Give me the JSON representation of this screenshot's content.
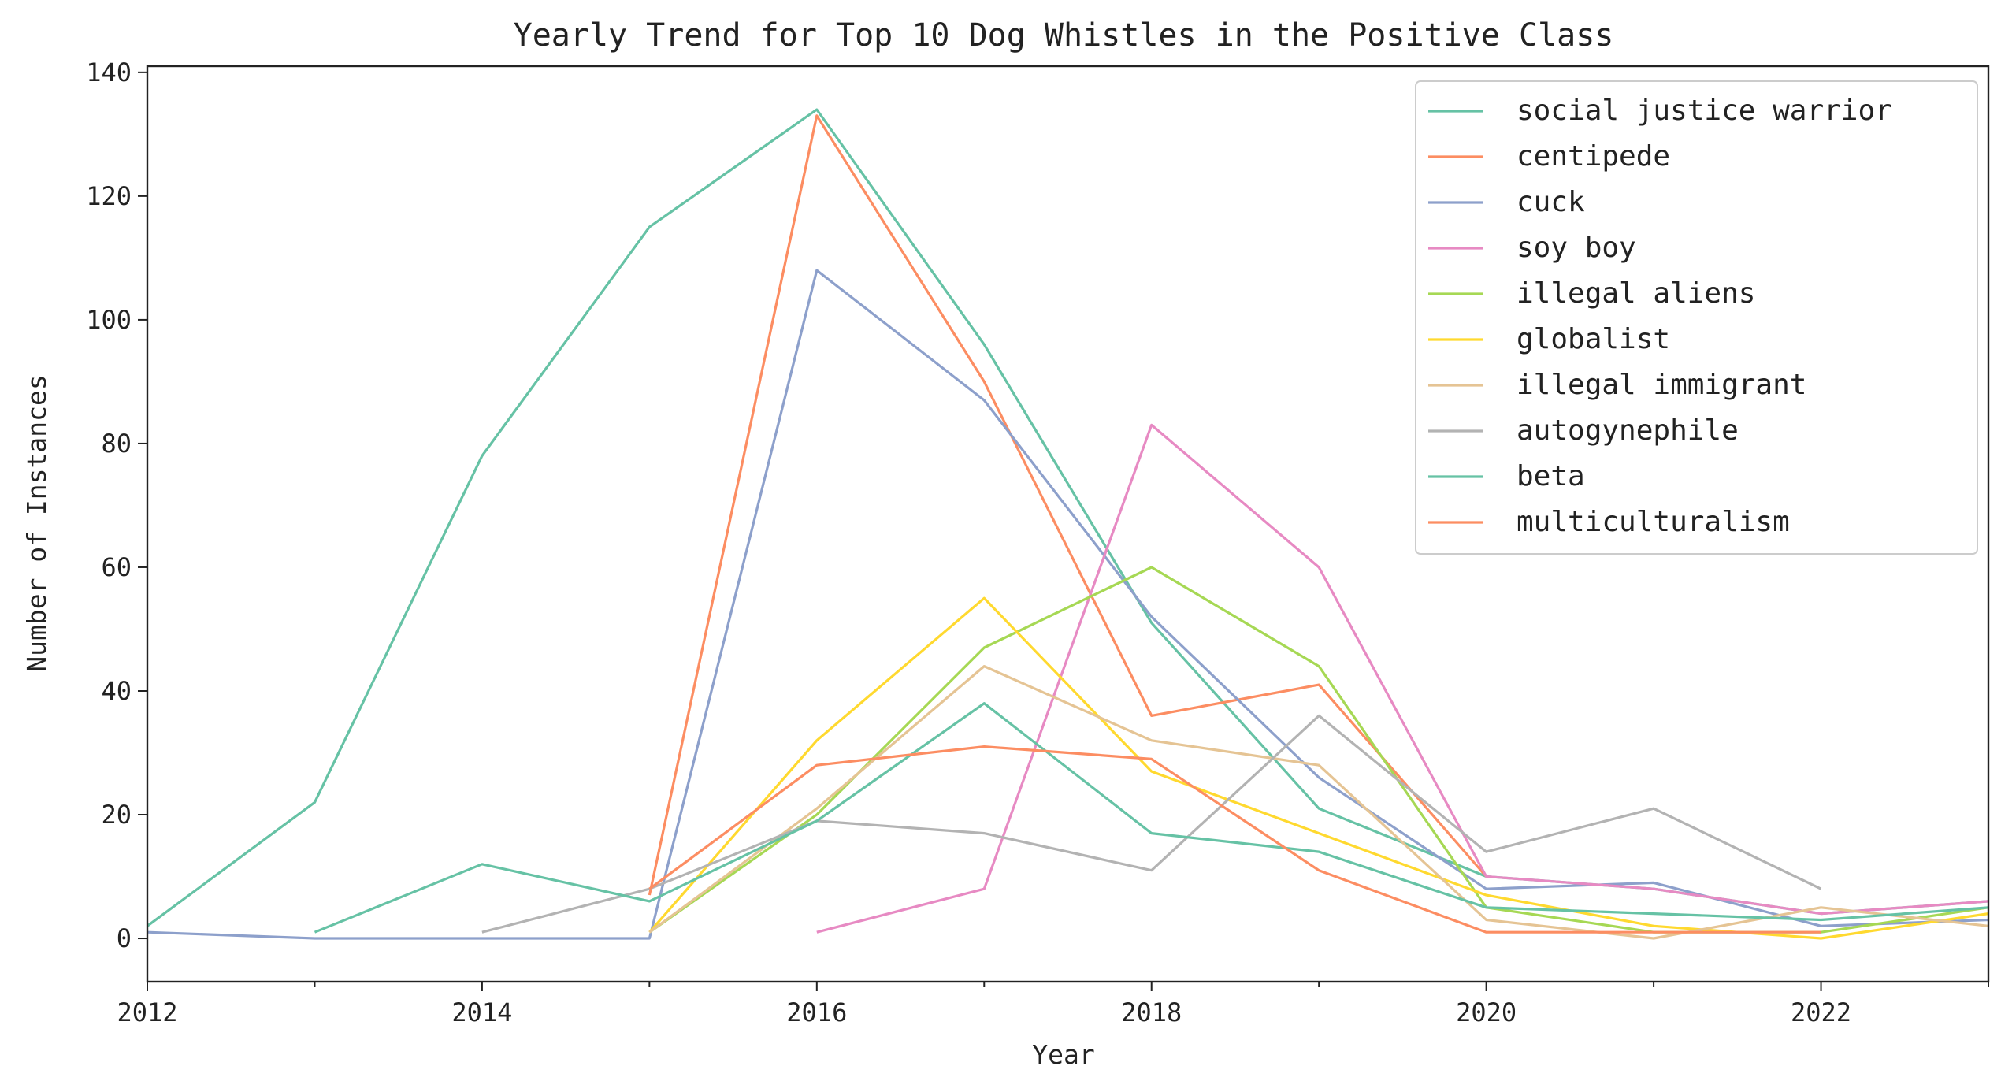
{
  "chart_data": {
    "type": "line",
    "title": "Yearly Trend for Top 10 Dog Whistles in the Positive Class",
    "xlabel": "Year",
    "ylabel": "Number of Instances",
    "xlim": [
      2012,
      2023
    ],
    "ylim": [
      -7,
      141
    ],
    "x_ticks": [
      2012,
      2014,
      2016,
      2018,
      2020,
      2022
    ],
    "y_ticks": [
      0,
      20,
      40,
      60,
      80,
      100,
      120,
      140
    ],
    "grid": false,
    "legend_position": "top-right",
    "series": [
      {
        "name": "social justice warrior",
        "color": "#66c2a5",
        "x": [
          2012,
          2013,
          2014,
          2015,
          2016,
          2017,
          2018,
          2019,
          2020,
          2021,
          2022,
          2023
        ],
        "y": [
          2,
          22,
          78,
          115,
          134,
          96,
          51,
          21,
          10,
          8,
          4,
          6
        ]
      },
      {
        "name": "centipede",
        "color": "#fc8d62",
        "x": [
          2015,
          2016,
          2017,
          2018,
          2019,
          2020
        ],
        "y": [
          7,
          133,
          90,
          36,
          41,
          10
        ]
      },
      {
        "name": "cuck",
        "color": "#8da0cb",
        "x": [
          2012,
          2013,
          2014,
          2015,
          2016,
          2017,
          2018,
          2019,
          2020,
          2021,
          2022,
          2023
        ],
        "y": [
          1,
          0,
          0,
          0,
          108,
          87,
          52,
          26,
          8,
          9,
          2,
          3
        ]
      },
      {
        "name": "soy boy",
        "color": "#e78ac3",
        "x": [
          2016,
          2017,
          2018,
          2019,
          2020,
          2021,
          2022,
          2023
        ],
        "y": [
          1,
          8,
          83,
          60,
          10,
          8,
          4,
          6
        ]
      },
      {
        "name": "illegal aliens",
        "color": "#a6d854",
        "x": [
          2015,
          2016,
          2017,
          2018,
          2019,
          2020,
          2021,
          2022,
          2023
        ],
        "y": [
          1,
          20,
          47,
          60,
          44,
          5,
          1,
          1,
          5
        ]
      },
      {
        "name": "globalist",
        "color": "#ffd92f",
        "x": [
          2015,
          2016,
          2017,
          2018,
          2019,
          2020,
          2021,
          2022,
          2023
        ],
        "y": [
          1,
          32,
          55,
          27,
          17,
          7,
          2,
          0,
          4
        ]
      },
      {
        "name": "illegal immigrant",
        "color": "#e5c494",
        "x": [
          2015,
          2016,
          2017,
          2018,
          2019,
          2020,
          2021,
          2022,
          2023
        ],
        "y": [
          1,
          21,
          44,
          32,
          28,
          3,
          0,
          5,
          2
        ]
      },
      {
        "name": "autogynephile",
        "color": "#b3b3b3",
        "x": [
          2014,
          2015,
          2016,
          2017,
          2018,
          2019,
          2020,
          2021,
          2022
        ],
        "y": [
          1,
          8,
          19,
          17,
          11,
          36,
          14,
          21,
          8
        ]
      },
      {
        "name": "beta",
        "color": "#66c2a5",
        "x": [
          2013,
          2014,
          2015,
          2016,
          2017,
          2018,
          2019,
          2020,
          2021,
          2022,
          2023
        ],
        "y": [
          1,
          12,
          6,
          19,
          38,
          17,
          14,
          5,
          4,
          3,
          5
        ]
      },
      {
        "name": "multiculturalism",
        "color": "#fc8d62",
        "x": [
          2015,
          2016,
          2017,
          2018,
          2019,
          2020,
          2021,
          2022
        ],
        "y": [
          8,
          28,
          31,
          29,
          11,
          1,
          1,
          1
        ]
      }
    ]
  }
}
